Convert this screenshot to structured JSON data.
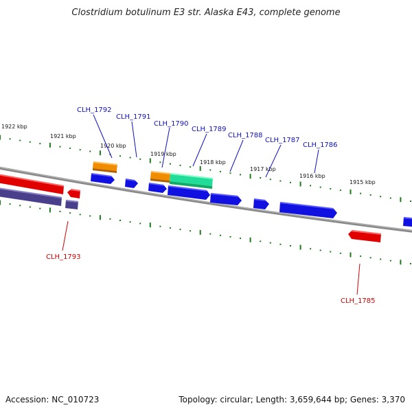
{
  "title": "Clostridium botulinum E3 str. Alaska E43, complete genome",
  "footer": {
    "accession": "Accession: NC_010723",
    "topology": "Topology: circular; Length: 3,659,644 bp; Genes: 3,370"
  },
  "colors": {
    "backbone": "#888888",
    "ticks": "#1a7a1a",
    "forward_gene": "#1010e0",
    "reverse_gene": "#e00000",
    "reverse_gene_dark": "#4a3f8a",
    "orange_feature": "#f08c00",
    "teal_feature": "#22dd99",
    "forward_label": "#1010c0",
    "reverse_label": "#cc0000"
  },
  "kbp_labels": [
    "1922 kbp",
    "1921 kbp",
    "1920 kbp",
    "1919 kbp",
    "1918 kbp",
    "1917 kbp",
    "1916 kbp",
    "1915 kbp"
  ],
  "gene_labels": [
    "CLH_1792",
    "CLH_1791",
    "CLH_1790",
    "CLH_1789",
    "CLH_1788",
    "CLH_1787",
    "CLH_1786",
    "CLH_1793",
    "CLH_1785"
  ]
}
